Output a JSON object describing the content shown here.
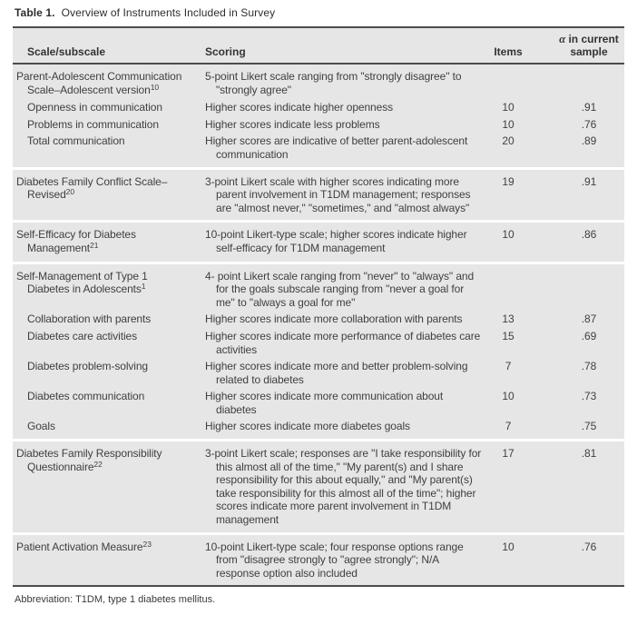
{
  "title": {
    "bold": "Table 1.",
    "rest": "Overview of Instruments Included in Survey"
  },
  "table": {
    "header": {
      "scale": "Scale/subscale",
      "scoring": "Scoring",
      "items": "Items",
      "alpha_symbol": "α",
      "alpha_label": " in current sample"
    },
    "sections": [
      {
        "rows": [
          {
            "scale": "Parent-Adolescent Communication Scale–Adolescent version",
            "sup": "10",
            "indent": false,
            "scoring": "5-point Likert scale ranging from \"strongly disagree\" to \"strongly agree\"",
            "items": "",
            "alpha": ""
          },
          {
            "scale": "Openness in communication",
            "indent": true,
            "scoring": "Higher scores indicate higher openness",
            "items": "10",
            "alpha": ".91"
          },
          {
            "scale": "Problems in communication",
            "indent": true,
            "scoring": "Higher scores indicate less problems",
            "items": "10",
            "alpha": ".76"
          },
          {
            "scale": "Total communication",
            "indent": true,
            "scoring": "Higher scores are indicative of better parent-adolescent communication",
            "items": "20",
            "alpha": ".89"
          }
        ]
      },
      {
        "rows": [
          {
            "scale": "Diabetes Family Conflict Scale–Revised",
            "sup": "20",
            "indent": false,
            "scoring": "3-point Likert scale with higher scores indicating more parent involvement in T1DM management; responses are \"almost never,\" \"sometimes,\" and \"almost always\"",
            "items": "19",
            "alpha": ".91"
          }
        ]
      },
      {
        "rows": [
          {
            "scale": "Self-Efficacy for Diabetes Management",
            "sup": "21",
            "indent": false,
            "scoring": "10-point Likert-type scale; higher scores indicate higher self-efficacy for T1DM management",
            "items": "10",
            "alpha": ".86"
          }
        ]
      },
      {
        "rows": [
          {
            "scale": "Self-Management of Type 1 Diabetes in Adolescents",
            "sup": "1",
            "indent": false,
            "scoring": "4- point Likert scale ranging from \"never\" to \"always\" and for the goals subscale ranging from \"never a goal for me\" to \"always a goal for me\"",
            "items": "",
            "alpha": ""
          },
          {
            "scale": "Collaboration with parents",
            "indent": true,
            "scoring": "Higher scores indicate more collaboration with parents",
            "items": "13",
            "alpha": ".87"
          },
          {
            "scale": "Diabetes care activities",
            "indent": true,
            "scoring": "Higher scores indicate more performance of diabetes care activities",
            "items": "15",
            "alpha": ".69"
          },
          {
            "scale": "Diabetes problem-solving",
            "indent": true,
            "scoring": "Higher scores indicate more and better problem-solving related to diabetes",
            "items": "7",
            "alpha": ".78"
          },
          {
            "scale": "Diabetes communication",
            "indent": true,
            "scoring": "Higher scores indicate more communication about diabetes",
            "items": "10",
            "alpha": ".73"
          },
          {
            "scale": "Goals",
            "indent": true,
            "scoring": "Higher scores indicate more diabetes goals",
            "items": "7",
            "alpha": ".75"
          }
        ]
      },
      {
        "rows": [
          {
            "scale": "Diabetes Family Responsibility Questionnaire",
            "sup": "22",
            "indent": false,
            "scoring": "3-point Likert scale; responses are \"I take responsibility for this almost all of the time,\" \"My parent(s) and I share responsibility for this about equally,\" and \"My parent(s) take responsibility for this almost all of the time\"; higher scores indicate more parent involvement in T1DM management",
            "items": "17",
            "alpha": ".81"
          }
        ]
      },
      {
        "rows": [
          {
            "scale": "Patient Activation Measure",
            "sup": "23",
            "indent": false,
            "scoring": "10-point Likert-type scale; four response options range from \"disagree strongly to \"agree strongly\"; N/A response option also included",
            "items": "10",
            "alpha": ".76"
          }
        ]
      }
    ]
  },
  "footnote": "Abbreviation: T1DM, type 1 diabetes mellitus."
}
